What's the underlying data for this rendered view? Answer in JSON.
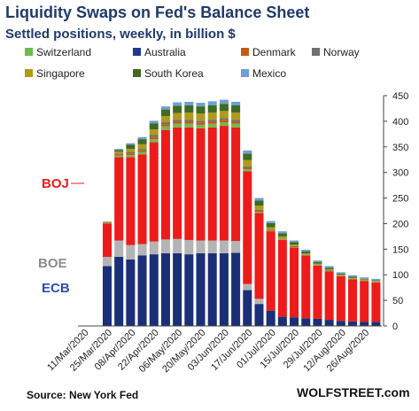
{
  "chart_data": {
    "type": "bar",
    "stacked": true,
    "title": "Liquidity Swaps on Fed's Balance Sheet",
    "subtitle": "Settled positions, weekly, in billion $",
    "ylim": [
      0,
      450
    ],
    "yticks": [
      0,
      50,
      100,
      150,
      200,
      250,
      300,
      350,
      400,
      450
    ],
    "y_axis_side": "right",
    "grid": false,
    "legend_position": "top",
    "x_tick_labels": [
      "11/Mar/2020",
      "25/Mar/2020",
      "08/Apr/2020",
      "22/Apr/2020",
      "06/May/2020",
      "20/May/2020",
      "03/Jun/2020",
      "17/Jun/2020",
      "01/Jul/2020",
      "15/Jul/2020",
      "29/Jul/2020",
      "12/Aug/2020",
      "26/Aug/2020"
    ],
    "categories": [
      "11/Mar/2020",
      "18/Mar/2020",
      "25/Mar/2020",
      "01/Apr/2020",
      "08/Apr/2020",
      "15/Apr/2020",
      "22/Apr/2020",
      "29/Apr/2020",
      "06/May/2020",
      "13/May/2020",
      "20/May/2020",
      "27/May/2020",
      "03/Jun/2020",
      "10/Jun/2020",
      "17/Jun/2020",
      "24/Jun/2020",
      "01/Jul/2020",
      "08/Jul/2020",
      "15/Jul/2020",
      "22/Jul/2020",
      "29/Jul/2020",
      "05/Aug/2020",
      "12/Aug/2020",
      "19/Aug/2020",
      "26/Aug/2020",
      "02/Sep/2020"
    ],
    "series": [
      {
        "name": "ECB",
        "color": "#1a2f78",
        "values": [
          0,
          0,
          117,
          135,
          130,
          138,
          140,
          142,
          142,
          140,
          142,
          142,
          142,
          143,
          70,
          43,
          30,
          18,
          17,
          15,
          14,
          12,
          10,
          9,
          8,
          8
        ]
      },
      {
        "name": "BOE",
        "color": "#b4b4b4",
        "values": [
          0,
          0,
          18,
          32,
          28,
          22,
          25,
          27,
          28,
          28,
          25,
          25,
          25,
          23,
          12,
          10,
          0,
          0,
          0,
          0,
          0,
          0,
          0,
          0,
          0,
          0
        ]
      },
      {
        "name": "BOJ",
        "color": "#ee1b1b",
        "values": [
          0,
          0,
          65,
          163,
          172,
          175,
          194,
          214,
          218,
          220,
          219,
          221,
          224,
          222,
          220,
          168,
          155,
          150,
          136,
          123,
          104,
          95,
          87,
          82,
          80,
          77
        ]
      },
      {
        "name": "Switzerland",
        "color": "#6fba4b",
        "values": [
          0,
          0,
          1,
          3,
          4,
          5,
          6,
          7,
          7,
          7,
          7,
          7,
          7,
          7,
          4,
          2,
          1,
          1,
          1,
          1,
          1,
          1,
          1,
          1,
          1,
          1
        ]
      },
      {
        "name": "Australia",
        "color": "#1f3a8a",
        "values": [
          0,
          0,
          0,
          0,
          0,
          0,
          0,
          0,
          0,
          0,
          0,
          0,
          0,
          0,
          0,
          0,
          0,
          0,
          0,
          0,
          0,
          0,
          0,
          0,
          0,
          0
        ]
      },
      {
        "name": "Denmark",
        "color": "#c55a11",
        "values": [
          0,
          0,
          1,
          2,
          3,
          3,
          4,
          4,
          4,
          4,
          4,
          4,
          4,
          4,
          3,
          2,
          1,
          1,
          1,
          0,
          0,
          0,
          0,
          0,
          0,
          0
        ]
      },
      {
        "name": "Norway",
        "color": "#707070",
        "values": [
          0,
          0,
          1,
          2,
          3,
          3,
          4,
          4,
          4,
          4,
          4,
          4,
          4,
          4,
          3,
          2,
          1,
          1,
          1,
          1,
          1,
          1,
          0,
          0,
          0,
          0
        ]
      },
      {
        "name": "Singapore",
        "color": "#b09a1a",
        "values": [
          0,
          0,
          1,
          4,
          6,
          9,
          11,
          12,
          13,
          14,
          14,
          14,
          14,
          14,
          12,
          8,
          5,
          4,
          3,
          2,
          2,
          2,
          2,
          2,
          2,
          2
        ]
      },
      {
        "name": "South Korea",
        "color": "#3e6a22",
        "values": [
          0,
          0,
          0,
          3,
          8,
          10,
          12,
          13,
          14,
          14,
          14,
          14,
          14,
          14,
          13,
          10,
          8,
          6,
          5,
          4,
          3,
          3,
          2,
          2,
          1,
          1
        ]
      },
      {
        "name": "Mexico",
        "color": "#6e9fd6",
        "values": [
          0,
          0,
          0,
          2,
          3,
          4,
          5,
          6,
          7,
          7,
          7,
          8,
          8,
          7,
          6,
          5,
          4,
          4,
          3,
          3,
          3,
          3,
          3,
          3,
          3,
          3
        ]
      }
    ],
    "annotations": [
      {
        "text": "BOJ",
        "color": "#ee1b1b",
        "points_to": "BOJ"
      },
      {
        "text": "BOE",
        "color": "#8c8c8c",
        "points_to": "BOE"
      },
      {
        "text": "ECB",
        "color": "#2d4fb0",
        "points_to": "ECB"
      }
    ]
  },
  "footer": {
    "source": "Source: New York Fed",
    "brand": "WOLFSTREET.com"
  }
}
